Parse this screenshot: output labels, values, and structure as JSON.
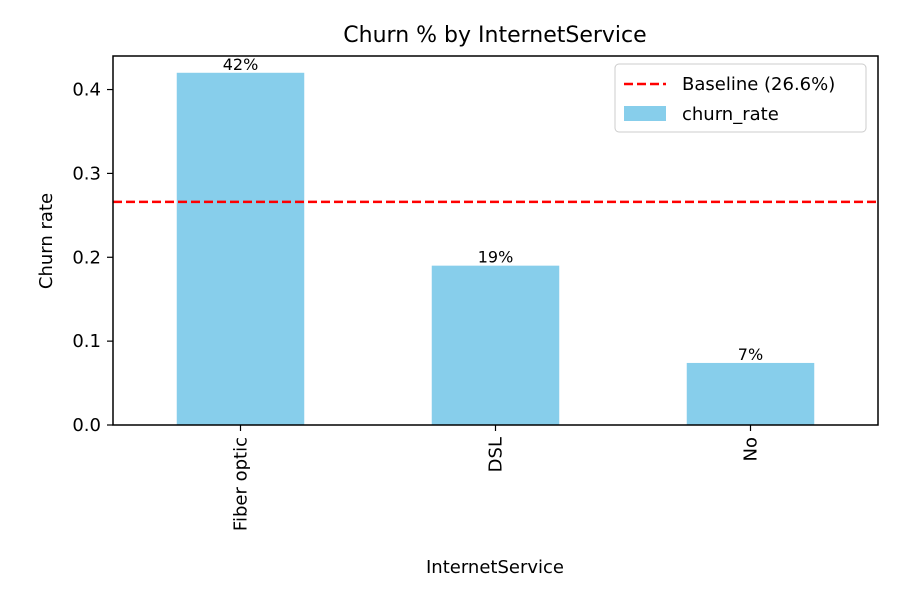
{
  "chart_data": {
    "type": "bar",
    "title": "Churn % by InternetService",
    "xlabel": "InternetService",
    "ylabel": "Churn rate",
    "categories": [
      "Fiber optic",
      "DSL",
      "No"
    ],
    "series": [
      {
        "name": "churn_rate",
        "values": [
          0.42,
          0.19,
          0.074
        ],
        "data_labels": [
          "42%",
          "19%",
          "7%"
        ],
        "color": "#87CEEB"
      }
    ],
    "baseline": {
      "label": "Baseline (26.6%)",
      "value": 0.266,
      "color": "#FF0000",
      "style": "dashed"
    },
    "ylim": [
      0,
      0.44
    ],
    "yticks": [
      0.0,
      0.1,
      0.2,
      0.3,
      0.4
    ],
    "ytick_labels": [
      "0.0",
      "0.1",
      "0.2",
      "0.3",
      "0.4"
    ],
    "grid": false,
    "legend_position": "top-right"
  }
}
